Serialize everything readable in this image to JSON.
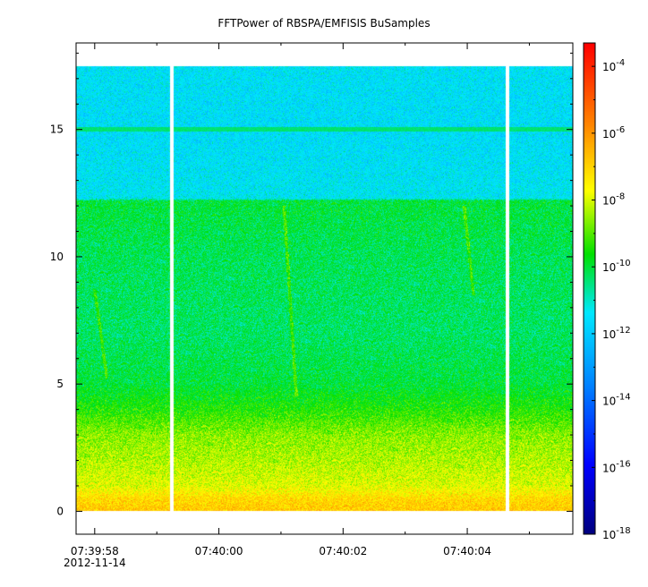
{
  "chart_data": {
    "type": "heatmap",
    "title": "FFTPower of RBSPA/EMFISIS  BuSamples",
    "xlabel": "",
    "ylabel": "",
    "x_ticks": [
      {
        "label": "07:39:58",
        "sublabel": "2012-11-14",
        "t": 0
      },
      {
        "label": "07:40:00",
        "t": 2
      },
      {
        "label": "07:40:02",
        "t": 4
      },
      {
        "label": "07:40:04",
        "t": 6
      }
    ],
    "x_range": [
      "07:39:57.7",
      "07:40:05.7"
    ],
    "y_ticks": [
      0,
      5,
      10,
      15
    ],
    "ylim": [
      -0.9,
      18.4
    ],
    "data_extent": {
      "y": [
        0,
        17.5
      ]
    },
    "data_gaps": [
      {
        "x_start": "07:39:59.22",
        "x_end": "07:39:59.27"
      },
      {
        "x_start": "07:40:04.62",
        "x_end": "07:40:04.67"
      }
    ],
    "colorbar": {
      "scale": "log",
      "range": [
        "1e-18",
        "1e-3.3"
      ],
      "ticks": [
        {
          "base": "10",
          "exp": "-4",
          "value": -4
        },
        {
          "base": "10",
          "exp": "-6",
          "value": -6
        },
        {
          "base": "10",
          "exp": "-8",
          "value": -8
        },
        {
          "base": "10",
          "exp": "-10",
          "value": -10
        },
        {
          "base": "10",
          "exp": "-12",
          "value": -12
        },
        {
          "base": "10",
          "exp": "-14",
          "value": -14
        },
        {
          "base": "10",
          "exp": "-16",
          "value": -16
        },
        {
          "base": "10",
          "exp": "-18",
          "value": -18
        }
      ],
      "colors": [
        "#00007f",
        "#0000ff",
        "#0080ff",
        "#00e8ff",
        "#00e000",
        "#ffff00",
        "#ff8000",
        "#ff0000"
      ]
    },
    "power_profile": [
      {
        "freq": 0.0,
        "log_power": -6.8
      },
      {
        "freq": 0.5,
        "log_power": -7.1
      },
      {
        "freq": 1.0,
        "log_power": -7.9
      },
      {
        "freq": 2.0,
        "log_power": -8.3
      },
      {
        "freq": 3.0,
        "log_power": -8.6
      },
      {
        "freq": 4.0,
        "log_power": -9.4
      },
      {
        "freq": 5.0,
        "log_power": -10.0
      },
      {
        "freq": 7.0,
        "log_power": -10.3
      },
      {
        "freq": 10.0,
        "log_power": -10.2
      },
      {
        "freq": 12.2,
        "log_power": -10.0
      },
      {
        "freq": 12.3,
        "log_power": -11.4
      },
      {
        "freq": 15.0,
        "log_power": -11.6
      },
      {
        "freq": 17.5,
        "log_power": -11.5
      }
    ],
    "features": [
      {
        "type": "line",
        "freq": 15.0,
        "log_power": -10.4
      },
      {
        "type": "streak",
        "t_top": 0.0,
        "y_top": 8.7,
        "t_bottom": 0.2,
        "y_bottom": 5.2
      },
      {
        "type": "streak",
        "t_top": 3.05,
        "y_top": 12.0,
        "t_bottom": 3.25,
        "y_bottom": 4.5
      },
      {
        "type": "streak",
        "t_top": 5.95,
        "y_top": 12.0,
        "t_bottom": 6.1,
        "y_bottom": 8.5
      }
    ]
  }
}
